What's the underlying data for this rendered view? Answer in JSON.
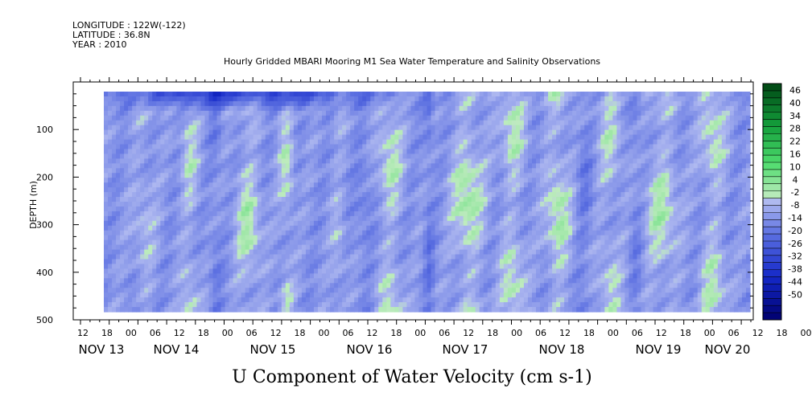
{
  "header": {
    "longitude": "LONGITUDE : 122W(-122)",
    "latitude": "LATITUDE : 36.8N",
    "year": "YEAR : 2010"
  },
  "chart_data": {
    "type": "heatmap",
    "title": "Hourly Gridded MBARI Mooring M1 Sea Water Temperature and Salinity Observations",
    "variable_label": "U Component of Water Velocity (cm s-1)",
    "ylabel": "DEPTH (m)",
    "ylim": [
      500,
      10
    ],
    "y_ticks": [
      100,
      200,
      300,
      400,
      500
    ],
    "y_tick_labels": [
      "100",
      "200",
      "300",
      "400",
      "500"
    ],
    "x_hour_labels": [
      "12",
      "18",
      "00",
      "06",
      "12",
      "18",
      "00",
      "06",
      "12",
      "18",
      "00",
      "06",
      "12",
      "18",
      "00",
      "06",
      "12",
      "18",
      "00",
      "06",
      "12",
      "18",
      "00",
      "06",
      "12",
      "18",
      "00",
      "06",
      "12",
      "18",
      "00",
      "06"
    ],
    "x_date_labels": [
      "NOV 13",
      "NOV 14",
      "NOV 15",
      "NOV 16",
      "NOV 17",
      "NOV 18",
      "NOV 19",
      "NOV 20"
    ],
    "colorbar_labels": [
      "46",
      "40",
      "34",
      "28",
      "22",
      "16",
      "10",
      "4",
      "-2",
      "-8",
      "-14",
      "-20",
      "-26",
      "-32",
      "-38",
      "-44",
      "-50"
    ],
    "colorbar_levels": [
      -50,
      -47,
      -44,
      -41,
      -38,
      -35,
      -32,
      -29,
      -26,
      -23,
      -20,
      -17,
      -14,
      -11,
      -8,
      -5,
      -2,
      1,
      4,
      7,
      10,
      13,
      16,
      19,
      22,
      25,
      28,
      31,
      34,
      37,
      40,
      43,
      46,
      49
    ],
    "grid": false
  }
}
